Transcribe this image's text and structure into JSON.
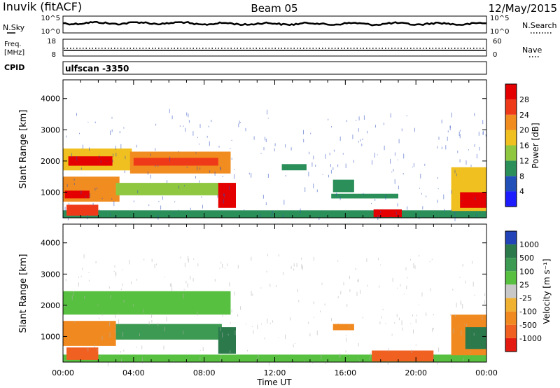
{
  "header": {
    "station": "Inuvik (fitACF)",
    "beam": "Beam 05",
    "date": "12/May/2015"
  },
  "top_panels": {
    "nsky_label": "N.Sky",
    "nsearch_label": "N.Search",
    "freq_label_1": "Freq.",
    "freq_label_2": "[MHz]",
    "nave_label": "Nave",
    "cpid_label": "CPID",
    "cpid_value": "ulfscan -3350",
    "noise_ticks": [
      "10^5",
      "10^0"
    ],
    "freq_ticks": [
      "18",
      "8"
    ],
    "nave_ticks": [
      "60",
      "0"
    ]
  },
  "chart_data": [
    {
      "type": "heatmap",
      "panel": "power",
      "xlabel": "",
      "ylabel": "Slant Range [km]",
      "x_ticks": [
        "00:00",
        "04:00",
        "08:00",
        "12:00",
        "16:00",
        "20:00",
        "00:00"
      ],
      "y_ticks": [
        1000,
        2000,
        3000,
        4000
      ],
      "ylim": [
        180,
        4600
      ],
      "colorbar_label": "Power [dB]",
      "colorbar_ticks": [
        4,
        8,
        12,
        16,
        20,
        24,
        28
      ],
      "colorbar_colors": [
        "#1c1cff",
        "#2050b8",
        "#2b8f5a",
        "#8fc840",
        "#f0c020",
        "#f08c20",
        "#ef3a1a",
        "#e40000"
      ],
      "regions": [
        {
          "t0": 0.0,
          "t1": 3.9,
          "r0": 1700,
          "r1": 2400,
          "level": 16
        },
        {
          "t0": 0.3,
          "t1": 2.8,
          "r0": 1850,
          "r1": 2150,
          "level": 28
        },
        {
          "t0": 3.8,
          "t1": 9.5,
          "r0": 1600,
          "r1": 2300,
          "level": 20
        },
        {
          "t0": 4.0,
          "t1": 8.8,
          "r0": 1850,
          "r1": 2100,
          "level": 24
        },
        {
          "t0": 0.0,
          "t1": 3.2,
          "r0": 700,
          "r1": 1500,
          "level": 20
        },
        {
          "t0": 0.1,
          "t1": 1.5,
          "r0": 800,
          "r1": 1050,
          "level": 28
        },
        {
          "t0": 3.0,
          "t1": 9.7,
          "r0": 900,
          "r1": 1300,
          "level": 12
        },
        {
          "t0": 8.8,
          "t1": 9.8,
          "r0": 500,
          "r1": 1300,
          "level": 28
        },
        {
          "t0": 0.0,
          "t1": 24.0,
          "r0": 180,
          "r1": 420,
          "level": 8
        },
        {
          "t0": 0.2,
          "t1": 2.0,
          "r0": 250,
          "r1": 600,
          "level": 24
        },
        {
          "t0": 17.6,
          "t1": 19.2,
          "r0": 200,
          "r1": 450,
          "level": 28
        },
        {
          "t0": 15.3,
          "t1": 16.5,
          "r0": 1000,
          "r1": 1400,
          "level": 8
        },
        {
          "t0": 15.2,
          "t1": 19.0,
          "r0": 800,
          "r1": 950,
          "level": 8
        },
        {
          "t0": 12.4,
          "t1": 13.8,
          "r0": 1700,
          "r1": 1900,
          "level": 8
        },
        {
          "t0": 22.0,
          "t1": 24.0,
          "r0": 400,
          "r1": 1800,
          "level": 16
        },
        {
          "t0": 22.5,
          "t1": 24.0,
          "r0": 500,
          "r1": 1000,
          "level": 28
        }
      ]
    },
    {
      "type": "heatmap",
      "panel": "velocity",
      "xlabel": "Time UT",
      "ylabel": "Slant Range [km]",
      "x_ticks": [
        "00:00",
        "04:00",
        "08:00",
        "12:00",
        "16:00",
        "20:00",
        "00:00"
      ],
      "y_ticks": [
        1000,
        2000,
        3000,
        4000
      ],
      "ylim": [
        180,
        4600
      ],
      "colorbar_label": "Velocity [m s⁻¹]",
      "colorbar_ticks": [
        "1000",
        "500",
        "100",
        "25",
        "-25",
        "-100",
        "-500",
        "-1000"
      ],
      "colorbar_colors": [
        "#2244b8",
        "#2c7a4c",
        "#3d9a52",
        "#58c040",
        "#c8c8c8",
        "#f0b030",
        "#f08a20",
        "#f06020",
        "#e41a10"
      ],
      "regions": [
        {
          "t0": 0.0,
          "t1": 9.5,
          "r0": 1700,
          "r1": 2450,
          "level": "25"
        },
        {
          "t0": 0.0,
          "t1": 3.0,
          "r0": 700,
          "r1": 1500,
          "level": "-100"
        },
        {
          "t0": 3.0,
          "t1": 9.0,
          "r0": 900,
          "r1": 1400,
          "level": "100"
        },
        {
          "t0": 8.8,
          "t1": 9.8,
          "r0": 450,
          "r1": 1300,
          "level": "500"
        },
        {
          "t0": 0.0,
          "t1": 24.0,
          "r0": 180,
          "r1": 420,
          "level": "25"
        },
        {
          "t0": 0.2,
          "t1": 2.0,
          "r0": 250,
          "r1": 650,
          "level": "-500"
        },
        {
          "t0": 17.5,
          "t1": 21.0,
          "r0": 200,
          "r1": 550,
          "level": "-500"
        },
        {
          "t0": 15.3,
          "t1": 16.5,
          "r0": 1200,
          "r1": 1400,
          "level": "-100"
        },
        {
          "t0": 22.0,
          "t1": 24.0,
          "r0": 400,
          "r1": 1700,
          "level": "-100"
        },
        {
          "t0": 22.8,
          "t1": 24.0,
          "r0": 600,
          "r1": 1300,
          "level": "500"
        }
      ]
    }
  ],
  "colors": {
    "axis": "#000000",
    "background": "#ffffff"
  }
}
